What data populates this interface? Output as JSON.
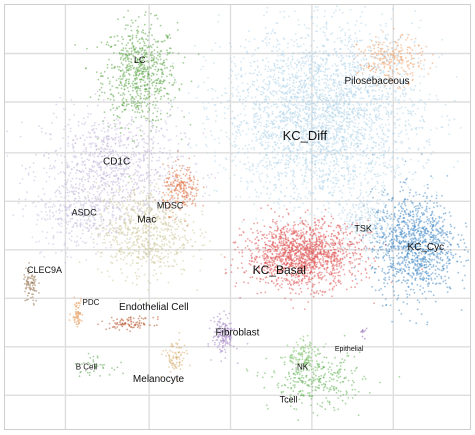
{
  "chart_data": {
    "type": "scatter",
    "title": "",
    "xlabel": "",
    "ylabel": "",
    "grid": true,
    "legend": "none",
    "xlim": [
      0,
      100
    ],
    "ylim": [
      0,
      92
    ],
    "gridlines_x": [
      13,
      31,
      48.5,
      66,
      83.5
    ],
    "gridlines_y": [
      7.5,
      18,
      28.5,
      39,
      49.5,
      60,
      71,
      81.5
    ],
    "clusters": [
      {
        "name": "LC",
        "label": "LC",
        "label_size": 9,
        "color": "#5fa84b",
        "n": 700,
        "cx": 29,
        "cy": 77,
        "sx": 4.0,
        "sy": 5.5,
        "lx": 29,
        "ly": 80
      },
      {
        "name": "CD1C",
        "label": "CD1C",
        "label_size": 10,
        "color": "#c3b7db",
        "n": 900,
        "cx": 23,
        "cy": 57,
        "sx": 7.5,
        "sy": 6.0,
        "lx": 24,
        "ly": 58
      },
      {
        "name": "ASDC",
        "label": "ASDC",
        "label_size": 9,
        "color": "#c9c1de",
        "n": 350,
        "cx": 16,
        "cy": 47,
        "sx": 5.0,
        "sy": 4.0,
        "lx": 17,
        "ly": 47
      },
      {
        "name": "Mac",
        "label": "Mac",
        "label_size": 10,
        "color": "#cec89b",
        "n": 700,
        "cx": 30,
        "cy": 43,
        "sx": 5.0,
        "sy": 5.0,
        "lx": 30.5,
        "ly": 45.5
      },
      {
        "name": "MDSC",
        "label": "MDSC",
        "label_size": 9,
        "color": "#e07a4c",
        "n": 220,
        "cx": 38,
        "cy": 52,
        "sx": 2.0,
        "sy": 2.5,
        "lx": 35.5,
        "ly": 48.5
      },
      {
        "name": "CLEC9A",
        "label": "CLEC9A",
        "label_size": 9,
        "color": "#9c7a5a",
        "n": 80,
        "cx": 5.5,
        "cy": 31,
        "sx": 0.8,
        "sy": 2.0,
        "lx": 8.5,
        "ly": 34.5
      },
      {
        "name": "PDC",
        "label": "PDC",
        "label_size": 8,
        "color": "#e79c5f",
        "n": 60,
        "cx": 15.5,
        "cy": 25.5,
        "sx": 0.6,
        "sy": 1.5,
        "lx": 18.5,
        "ly": 27.5
      },
      {
        "name": "B Cell",
        "label": "B Cell",
        "label_size": 8,
        "color": "#63a85a",
        "n": 40,
        "cx": 19,
        "cy": 14,
        "sx": 2.0,
        "sy": 1.0,
        "lx": 17.5,
        "ly": 13.5
      },
      {
        "name": "Endothelial Cell",
        "label": "Endothelial Cell",
        "label_size": 10,
        "color": "#b8582f",
        "n": 90,
        "cx": 27,
        "cy": 23,
        "sx": 2.5,
        "sy": 0.7,
        "lx": 32,
        "ly": 26.5
      },
      {
        "name": "Melanocyte",
        "label": "Melanocyte",
        "label_size": 10,
        "color": "#d9b377",
        "n": 90,
        "cx": 36.5,
        "cy": 15.5,
        "sx": 1.2,
        "sy": 2.0,
        "lx": 33,
        "ly": 11
      },
      {
        "name": "Fibroblast",
        "label": "Fibroblast",
        "label_size": 10,
        "color": "#a98ac8",
        "n": 160,
        "cx": 47,
        "cy": 20.5,
        "sx": 1.2,
        "sy": 2.0,
        "lx": 50,
        "ly": 21
      },
      {
        "name": "Pilosebaceous",
        "label": "Pilosebaceous",
        "label_size": 10,
        "color": "#eea36b",
        "n": 260,
        "cx": 83,
        "cy": 80,
        "sx": 3.5,
        "sy": 2.5,
        "lx": 80,
        "ly": 75.5
      },
      {
        "name": "KC_Diff",
        "label": "KC_Diff",
        "label_size": 13,
        "color": "#b3d5ea",
        "n": 3200,
        "cx": 68,
        "cy": 68,
        "sx": 10.5,
        "sy": 9.5,
        "lx": 64.5,
        "ly": 63.5
      },
      {
        "name": "TSK",
        "label": "TSK",
        "label_size": 9,
        "color": "#b9d4e6",
        "n": 250,
        "cx": 78,
        "cy": 45,
        "sx": 3.0,
        "sy": 3.5,
        "lx": 77,
        "ly": 43.5
      },
      {
        "name": "KC_Cyc",
        "label": "KC_Cyc",
        "label_size": 10,
        "color": "#4a8ec8",
        "n": 1100,
        "cx": 88,
        "cy": 40,
        "sx": 4.5,
        "sy": 5.5,
        "lx": 90.5,
        "ly": 39.5
      },
      {
        "name": "KC_Basal",
        "label": "KC_Basal",
        "label_size": 12,
        "color": "#e05a5a",
        "n": 1500,
        "cx": 64,
        "cy": 38,
        "sx": 6.0,
        "sy": 3.5,
        "lx": 59,
        "ly": 34.5
      },
      {
        "name": "NK",
        "label": "NK",
        "label_size": 8,
        "color": "#7ec36a",
        "n": 120,
        "cx": 64.5,
        "cy": 15.5,
        "sx": 1.8,
        "sy": 1.8,
        "lx": 64,
        "ly": 13.5
      },
      {
        "name": "Tcell",
        "label": "Tcell",
        "label_size": 9,
        "color": "#66b45a",
        "n": 300,
        "cx": 67,
        "cy": 10.5,
        "sx": 5.0,
        "sy": 3.0,
        "lx": 61,
        "ly": 6.5
      },
      {
        "name": "Epithelial",
        "label": "Epithelial",
        "label_size": 7,
        "color": "#9068b5",
        "n": 10,
        "cx": 77,
        "cy": 21,
        "sx": 0.4,
        "sy": 0.7,
        "lx": 74,
        "ly": 17.5
      }
    ]
  }
}
